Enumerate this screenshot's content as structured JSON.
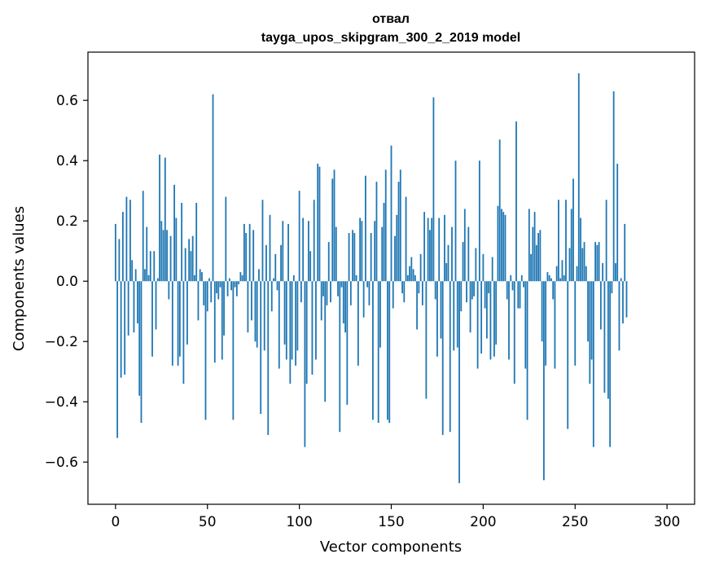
{
  "chart_data": {
    "type": "bar",
    "title": "отвал",
    "subtitle": "tayga_upos_skipgram_300_2_2019 model",
    "xlabel": "Vector components",
    "ylabel": "Components values",
    "xlim": [
      -15,
      315
    ],
    "ylim": [
      -0.74,
      0.76
    ],
    "x_ticks": [
      0,
      50,
      100,
      150,
      200,
      250,
      300
    ],
    "y_ticks": [
      -0.6,
      -0.4,
      -0.2,
      0.0,
      0.2,
      0.4,
      0.6
    ],
    "x_tick_labels": [
      "0",
      "50",
      "100",
      "150",
      "200",
      "250",
      "300"
    ],
    "y_tick_labels": [
      "−0.6",
      "−0.4",
      "−0.2",
      "0.0",
      "0.2",
      "0.4",
      "0.6"
    ],
    "grid": false,
    "bar_color": "#1f77b4",
    "values": [
      0.19,
      -0.52,
      0.14,
      -0.32,
      0.23,
      -0.31,
      0.28,
      -0.18,
      0.27,
      0.07,
      -0.17,
      0.04,
      -0.14,
      -0.38,
      -0.47,
      0.3,
      0.04,
      0.18,
      0.02,
      0.1,
      -0.25,
      0.1,
      -0.16,
      0.01,
      0.42,
      0.2,
      0.17,
      0.41,
      0.17,
      -0.06,
      0.15,
      -0.28,
      0.32,
      0.21,
      -0.28,
      -0.25,
      0.26,
      -0.34,
      0.11,
      -0.21,
      0.14,
      0.1,
      0.15,
      0.02,
      0.26,
      -0.13,
      0.04,
      0.03,
      -0.08,
      -0.46,
      -0.1,
      0.01,
      -0.07,
      0.62,
      -0.27,
      -0.04,
      -0.06,
      -0.02,
      -0.26,
      -0.18,
      0.28,
      -0.05,
      0.01,
      -0.03,
      -0.46,
      -0.02,
      -0.05,
      -0.01,
      0.03,
      0.02,
      0.19,
      0.16,
      -0.17,
      0.19,
      -0.13,
      0.17,
      -0.2,
      -0.22,
      0.04,
      -0.44,
      0.27,
      -0.23,
      0.12,
      -0.51,
      0.22,
      -0.1,
      0.01,
      0.09,
      -0.03,
      -0.29,
      0.12,
      0.2,
      -0.21,
      -0.26,
      0.19,
      -0.34,
      -0.26,
      0.02,
      -0.28,
      -0.23,
      0.3,
      -0.07,
      0.21,
      -0.55,
      -0.34,
      0.2,
      0.1,
      -0.31,
      0.27,
      -0.26,
      0.39,
      0.38,
      -0.13,
      -0.05,
      -0.4,
      -0.08,
      0.13,
      -0.07,
      0.34,
      0.37,
      0.18,
      -0.05,
      -0.5,
      -0.02,
      -0.14,
      -0.17,
      -0.41,
      0.16,
      -0.08,
      0.17,
      0.16,
      0.02,
      -0.28,
      0.21,
      0.2,
      -0.12,
      0.35,
      -0.02,
      -0.08,
      0.16,
      -0.46,
      0.2,
      0.33,
      -0.47,
      -0.22,
      0.18,
      0.26,
      0.37,
      -0.46,
      -0.47,
      0.45,
      -0.09,
      0.15,
      0.22,
      0.33,
      0.37,
      -0.04,
      -0.07,
      0.28,
      0.02,
      0.05,
      0.08,
      0.04,
      0.02,
      -0.16,
      -0.04,
      0.09,
      -0.08,
      0.23,
      -0.39,
      0.21,
      0.17,
      0.21,
      0.61,
      -0.06,
      -0.25,
      0.21,
      -0.19,
      -0.51,
      0.22,
      0.06,
      0.12,
      -0.5,
      0.18,
      -0.23,
      0.4,
      -0.22,
      -0.67,
      -0.1,
      0.13,
      0.24,
      -0.07,
      0.18,
      -0.17,
      -0.06,
      -0.05,
      0.11,
      -0.29,
      0.4,
      -0.24,
      0.09,
      -0.09,
      -0.19,
      -0.04,
      -0.26,
      0.08,
      -0.25,
      -0.21,
      0.25,
      0.47,
      0.24,
      0.23,
      0.22,
      -0.06,
      -0.26,
      0.02,
      -0.03,
      -0.34,
      0.53,
      -0.09,
      -0.09,
      0.02,
      -0.02,
      -0.29,
      -0.46,
      0.24,
      0.09,
      0.18,
      0.23,
      0.12,
      0.16,
      0.17,
      -0.2,
      -0.66,
      -0.28,
      0.03,
      0.02,
      0.01,
      -0.06,
      -0.29,
      0.05,
      0.27,
      0.01,
      0.07,
      0.02,
      0.27,
      -0.49,
      0.11,
      0.24,
      0.34,
      -0.28,
      0.05,
      0.69,
      0.21,
      0.11,
      0.13,
      0.05,
      -0.2,
      -0.34,
      -0.26,
      -0.55,
      0.13,
      0.12,
      0.13,
      -0.16,
      0.06,
      -0.37,
      0.27,
      -0.39,
      -0.55,
      -0.04,
      0.63,
      0.06,
      0.39,
      -0.23,
      0.01,
      -0.14,
      0.19,
      -0.12
    ]
  }
}
